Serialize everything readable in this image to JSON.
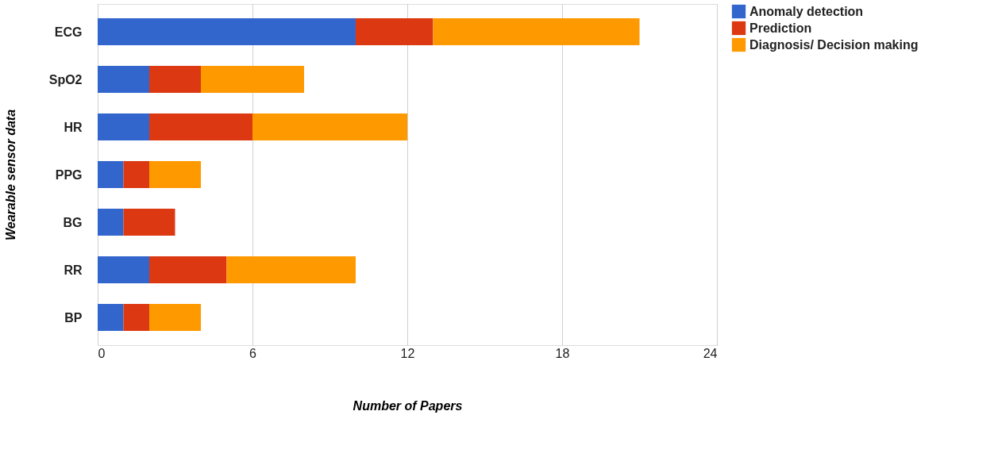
{
  "chart_data": {
    "type": "bar",
    "orientation": "horizontal",
    "stacked": true,
    "xlabel": "Number of Papers",
    "ylabel": "Wearable sensor data",
    "categories": [
      "ECG",
      "SpO2",
      "HR",
      "PPG",
      "BG",
      "RR",
      "BP"
    ],
    "series": [
      {
        "name": "Anomaly detection",
        "color": "#3366cc",
        "values": [
          10,
          2,
          2,
          1,
          1,
          2,
          1
        ]
      },
      {
        "name": "Prediction",
        "color": "#dc3912",
        "values": [
          3,
          2,
          4,
          1,
          2,
          3,
          1
        ]
      },
      {
        "name": "Diagnosis/ Decision making",
        "color": "#ff9900",
        "values": [
          8,
          4,
          6,
          2,
          0,
          5,
          2
        ]
      }
    ],
    "xlim": [
      0,
      24
    ],
    "xticks": [
      0,
      6,
      12,
      18,
      24
    ],
    "grid": "x",
    "legend": "top right"
  }
}
